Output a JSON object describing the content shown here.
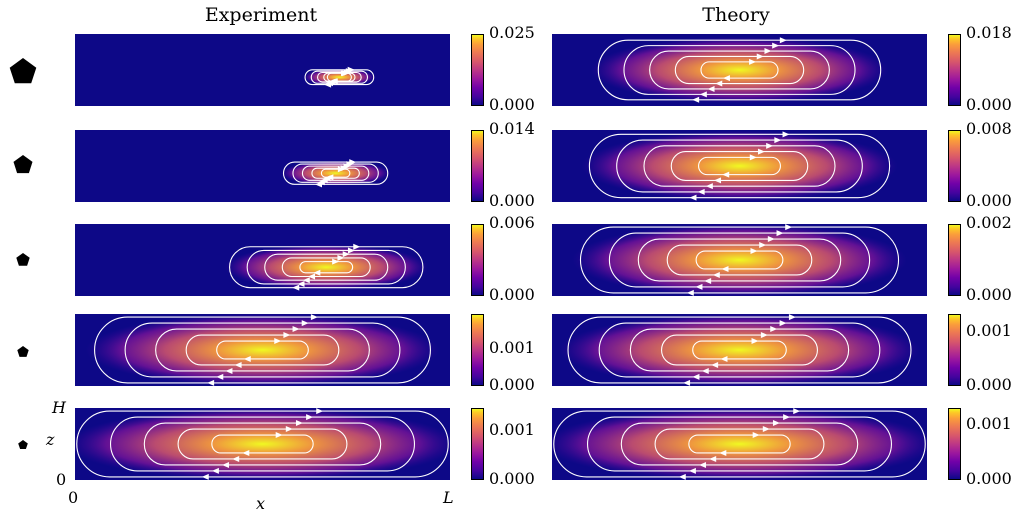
{
  "titles": {
    "experiment": "Experiment",
    "theory": "Theory"
  },
  "axis": {
    "x_label": "x",
    "z_label": "z",
    "x_min": "0",
    "x_max": "L",
    "z_min": "0",
    "z_max": "H"
  },
  "colors": {
    "background": "#ffffff",
    "colormap": [
      "#0d0887",
      "#46039f",
      "#7201a8",
      "#9c179e",
      "#bd3786",
      "#d8576b",
      "#ed7953",
      "#fb9f3a",
      "#fdca26",
      "#f0f921"
    ],
    "streamline": "#ffffff"
  },
  "rows": [
    {
      "shape": "pentagon-large",
      "experiment": {
        "max": "0.025",
        "min": "0.000"
      },
      "theory": {
        "max": "0.018",
        "min": "0.000"
      },
      "exp_spread": 0.15,
      "theo_spread": 0.75
    },
    {
      "shape": "pentagon-medium",
      "experiment": {
        "max": "0.014",
        "min": "0.000"
      },
      "theory": {
        "max": "0.008",
        "min": "0.000"
      },
      "exp_spread": 0.25,
      "theo_spread": 0.8
    },
    {
      "shape": "pentagon-small",
      "experiment": {
        "max": "0.006",
        "min": "0.000"
      },
      "theory": {
        "max": "0.002",
        "min": "0.000"
      },
      "exp_spread": 0.5,
      "theo_spread": 0.85
    },
    {
      "shape": "pentagon-smaller",
      "experiment": {
        "max": "0.001",
        "min": "0.000"
      },
      "theory": {
        "max": "0.001",
        "min": "0.000"
      },
      "exp_spread": 0.9,
      "theo_spread": 0.92
    },
    {
      "shape": "pentagon-smallest",
      "experiment": {
        "max": "0.001",
        "min": "0.000"
      },
      "theory": {
        "max": "0.001",
        "min": "0.000"
      },
      "exp_spread": 1.0,
      "theo_spread": 1.0
    }
  ]
}
